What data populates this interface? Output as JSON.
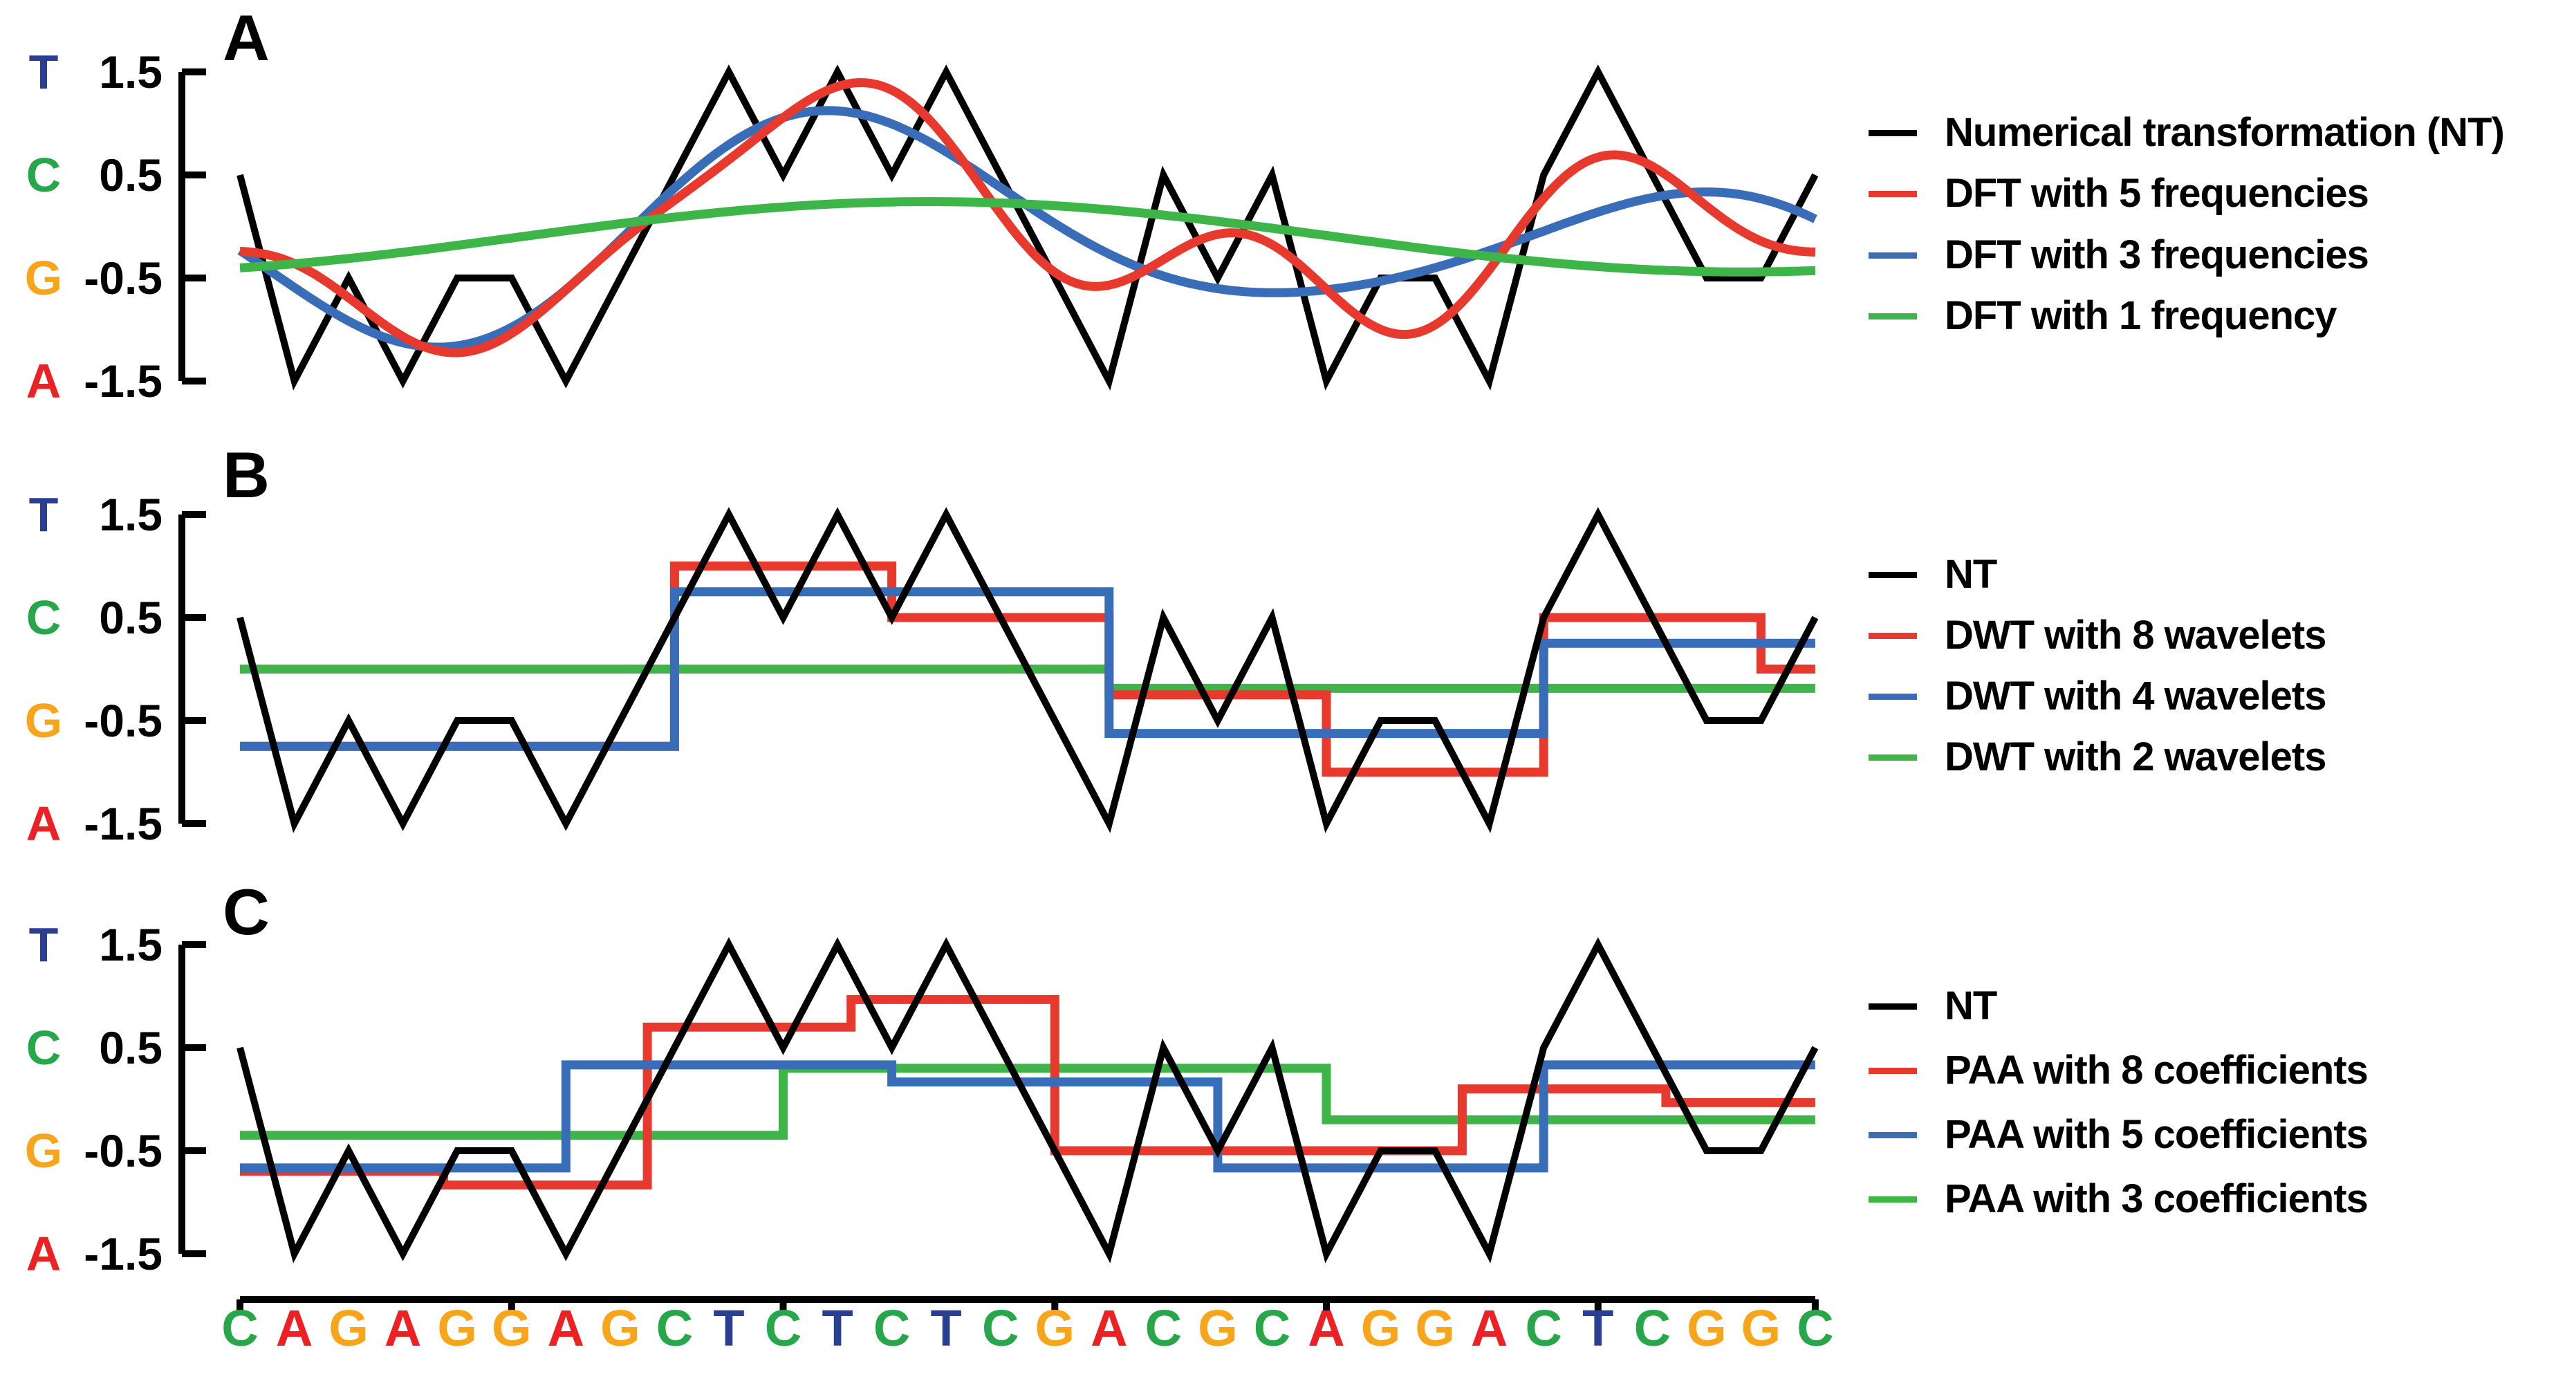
{
  "colors": {
    "nt_line": "#000000",
    "red_line": "#e8392e",
    "blue_line": "#3a6db8",
    "green_line": "#3eb549",
    "base_A": "#ed2024",
    "base_C": "#27a74a",
    "base_G": "#f9a51b",
    "base_T": "#2b3f92"
  },
  "y_axis": {
    "tick_labels": [
      "1.5",
      "0.5",
      "-0.5",
      "-1.5"
    ],
    "tick_values": [
      1.5,
      0.5,
      -0.5,
      -1.5
    ],
    "base_letters": [
      {
        "letter": "T",
        "value": 1.5,
        "color_key": "base_T"
      },
      {
        "letter": "C",
        "value": 0.5,
        "color_key": "base_C"
      },
      {
        "letter": "G",
        "value": -0.5,
        "color_key": "base_G"
      },
      {
        "letter": "A",
        "value": -1.5,
        "color_key": "base_A"
      }
    ]
  },
  "x_axis": {
    "tick_positions": [
      1,
      6,
      11,
      16,
      21,
      26,
      30
    ]
  },
  "sequence": {
    "letters": [
      "C",
      "A",
      "G",
      "A",
      "G",
      "G",
      "A",
      "G",
      "C",
      "T",
      "C",
      "T",
      "C",
      "T",
      "C",
      "G",
      "A",
      "C",
      "G",
      "C",
      "A",
      "G",
      "G",
      "A",
      "C",
      "T",
      "C",
      "G",
      "G",
      "C"
    ]
  },
  "chart_data": [
    {
      "panel": "A",
      "title": "A",
      "type": "line",
      "ylim": [
        -1.5,
        1.5
      ],
      "yticks": [
        1.5,
        0.5,
        -0.5,
        -1.5
      ],
      "x_range": [
        1,
        30
      ],
      "legend_position": "right",
      "series": [
        {
          "name": "Numerical transformation (NT)",
          "color_key": "nt_line",
          "kind": "polyline",
          "values": [
            0.5,
            -1.5,
            -0.5,
            -1.5,
            -0.5,
            -0.5,
            -1.5,
            -0.5,
            0.5,
            1.5,
            0.5,
            1.5,
            0.5,
            1.5,
            0.5,
            -0.5,
            -1.5,
            0.5,
            -0.5,
            0.5,
            -1.5,
            -0.5,
            -0.5,
            -1.5,
            0.5,
            1.5,
            0.5,
            -0.5,
            -0.5,
            0.5
          ]
        },
        {
          "name": "DFT with 5 frequencies",
          "color_key": "red_line",
          "kind": "dft_reconstruction",
          "frequencies": 5
        },
        {
          "name": "DFT with 3 frequencies",
          "color_key": "blue_line",
          "kind": "dft_reconstruction",
          "frequencies": 3
        },
        {
          "name": "DFT with 1 frequency",
          "color_key": "green_line",
          "kind": "dft_reconstruction",
          "frequencies": 1
        }
      ],
      "draw_order": [
        0,
        2,
        1,
        3
      ]
    },
    {
      "panel": "B",
      "title": "B",
      "type": "line",
      "ylim": [
        -1.5,
        1.5
      ],
      "yticks": [
        1.5,
        0.5,
        -0.5,
        -1.5
      ],
      "x_range": [
        1,
        30
      ],
      "legend_position": "right",
      "series": [
        {
          "name": "NT",
          "color_key": "nt_line",
          "kind": "polyline",
          "values": [
            0.5,
            -1.5,
            -0.5,
            -1.5,
            -0.5,
            -0.5,
            -1.5,
            -0.5,
            0.5,
            1.5,
            0.5,
            1.5,
            0.5,
            1.5,
            0.5,
            -0.5,
            -1.5,
            0.5,
            -0.5,
            0.5,
            -1.5,
            -0.5,
            -0.5,
            -1.5,
            0.5,
            1.5,
            0.5,
            -0.5,
            -0.5,
            0.5
          ]
        },
        {
          "name": "DWT with 8 wavelets",
          "color_key": "red_line",
          "kind": "step",
          "segment_starts": [
            1,
            5,
            9,
            13,
            17,
            21,
            25,
            29
          ],
          "segment_values": [
            -0.75,
            -0.75,
            1.0,
            0.5,
            -0.25,
            -1.0,
            0.5,
            0.0
          ],
          "x_end": 30
        },
        {
          "name": "DWT with 4 wavelets",
          "color_key": "blue_line",
          "kind": "step",
          "segment_starts": [
            1,
            9,
            17,
            25
          ],
          "segment_values": [
            -0.75,
            0.75,
            -0.625,
            0.25
          ],
          "x_end": 30
        },
        {
          "name": "DWT with 2 wavelets",
          "color_key": "green_line",
          "kind": "step",
          "segment_starts": [
            1,
            17
          ],
          "segment_values": [
            0.0,
            -0.1875
          ],
          "x_end": 30
        }
      ],
      "draw_order": [
        3,
        1,
        2,
        0
      ]
    },
    {
      "panel": "C",
      "title": "C",
      "type": "line",
      "ylim": [
        -1.5,
        1.5
      ],
      "yticks": [
        1.5,
        0.5,
        -0.5,
        -1.5
      ],
      "x_range": [
        1,
        30
      ],
      "legend_position": "right",
      "series": [
        {
          "name": "NT",
          "color_key": "nt_line",
          "kind": "polyline",
          "values": [
            0.5,
            -1.5,
            -0.5,
            -1.5,
            -0.5,
            -0.5,
            -1.5,
            -0.5,
            0.5,
            1.5,
            0.5,
            1.5,
            0.5,
            1.5,
            0.5,
            -0.5,
            -1.5,
            0.5,
            -0.5,
            0.5,
            -1.5,
            -0.5,
            -0.5,
            -1.5,
            0.5,
            1.5,
            0.5,
            -0.5,
            -0.5,
            0.5
          ]
        },
        {
          "name": "PAA with 8 coefficients",
          "color_key": "red_line",
          "kind": "step",
          "segment_starts": [
            1,
            4.75,
            8.5,
            12.25,
            16,
            19.75,
            23.5,
            27.25
          ],
          "segment_values": [
            -0.7,
            -0.833,
            0.7,
            0.967,
            -0.5,
            -0.5,
            0.1,
            -0.033
          ],
          "x_end": 30
        },
        {
          "name": "PAA with 5 coefficients",
          "color_key": "blue_line",
          "kind": "step",
          "segment_starts": [
            1,
            7,
            13,
            19,
            25
          ],
          "segment_values": [
            -0.667,
            0.333,
            0.167,
            -0.667,
            0.333
          ],
          "x_end": 30
        },
        {
          "name": "PAA with 3 coefficients",
          "color_key": "green_line",
          "kind": "step",
          "segment_starts": [
            1,
            11,
            21
          ],
          "segment_values": [
            -0.35,
            0.3,
            -0.2
          ],
          "x_end": 30
        }
      ],
      "draw_order": [
        3,
        1,
        2,
        0
      ]
    }
  ]
}
